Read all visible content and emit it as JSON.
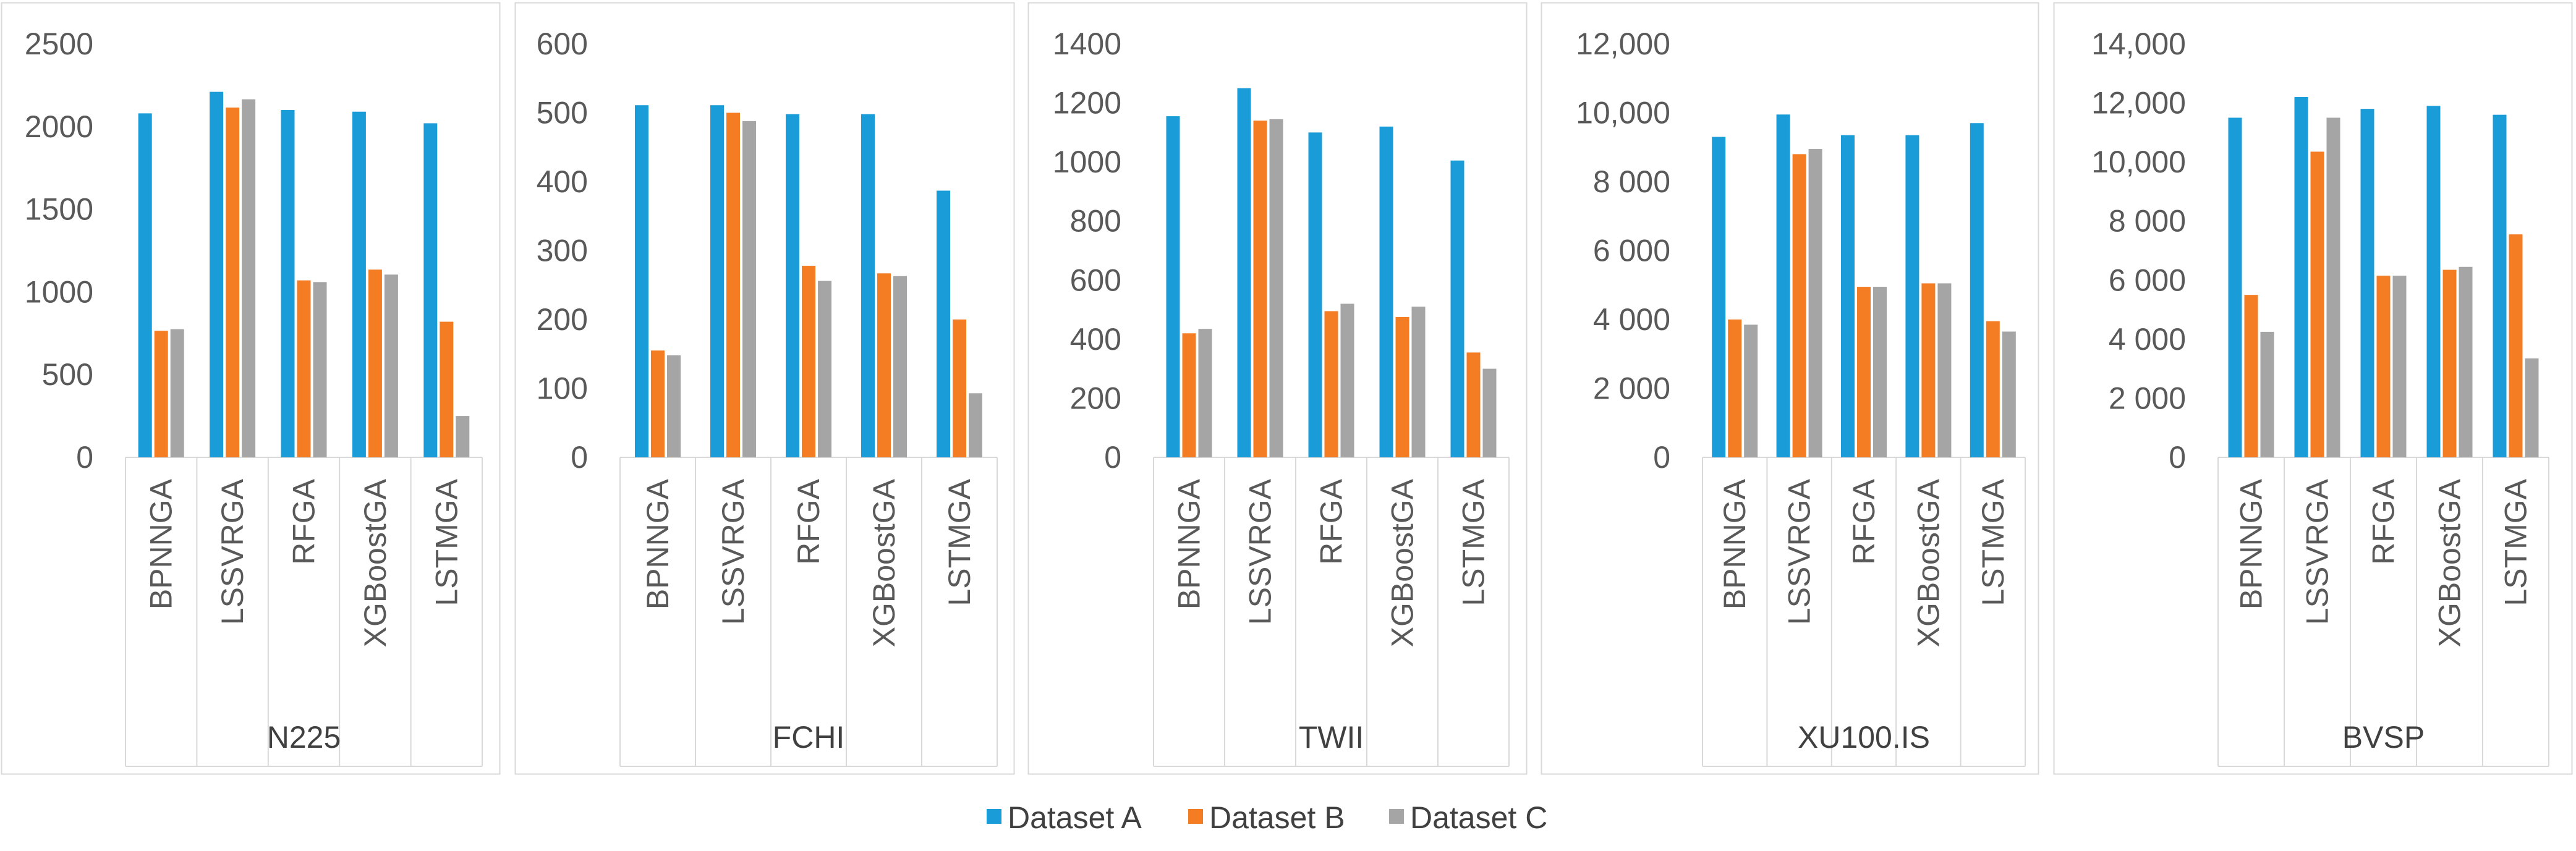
{
  "chart_data": [
    {
      "type": "bar",
      "title": "N225",
      "categories": [
        "BPNNGA",
        "LSSVRGA",
        "RFGA",
        "XGBoostGA",
        "LSTMGA"
      ],
      "series": [
        {
          "name": "Dataset A",
          "values": [
            2080,
            2210,
            2100,
            2090,
            2020
          ]
        },
        {
          "name": "Dataset B",
          "values": [
            765,
            2115,
            1070,
            1135,
            820
          ]
        },
        {
          "name": "Dataset C",
          "values": [
            775,
            2165,
            1060,
            1105,
            250
          ]
        }
      ],
      "ylim": [
        0,
        2500
      ],
      "yticks": [
        "0",
        "500",
        "1000",
        "1500",
        "2000",
        "2500"
      ]
    },
    {
      "type": "bar",
      "title": "FCHI",
      "categories": [
        "BPNNGA",
        "LSSVRGA",
        "RFGA",
        "XGBoostGA",
        "LSTMGA"
      ],
      "series": [
        {
          "name": "Dataset A",
          "values": [
            511,
            511,
            498,
            498,
            387
          ]
        },
        {
          "name": "Dataset B",
          "values": [
            155,
            500,
            278,
            267,
            200
          ]
        },
        {
          "name": "Dataset C",
          "values": [
            148,
            488,
            256,
            263,
            93
          ]
        }
      ],
      "ylim": [
        0,
        600
      ],
      "yticks": [
        "0",
        "100",
        "200",
        "300",
        "400",
        "500",
        "600"
      ]
    },
    {
      "type": "bar",
      "title": "TWII",
      "categories": [
        "BPNNGA",
        "LSSVRGA",
        "RFGA",
        "XGBoostGA",
        "LSTMGA"
      ],
      "series": [
        {
          "name": "Dataset A",
          "values": [
            1155,
            1250,
            1100,
            1120,
            1005
          ]
        },
        {
          "name": "Dataset B",
          "values": [
            420,
            1140,
            495,
            475,
            355
          ]
        },
        {
          "name": "Dataset C",
          "values": [
            435,
            1145,
            520,
            510,
            300
          ]
        }
      ],
      "ylim": [
        0,
        1400
      ],
      "yticks": [
        "0",
        "200",
        "400",
        "600",
        "800",
        "1000",
        "1200",
        "1400"
      ]
    },
    {
      "type": "bar",
      "title": "XU100.IS",
      "categories": [
        "BPNNGA",
        "LSSVRGA",
        "RFGA",
        "XGBoostGA",
        "LSTMGA"
      ],
      "series": [
        {
          "name": "Dataset A",
          "values": [
            9300,
            9950,
            9350,
            9350,
            9700
          ]
        },
        {
          "name": "Dataset B",
          "values": [
            4000,
            8800,
            4950,
            5050,
            3950
          ]
        },
        {
          "name": "Dataset C",
          "values": [
            3850,
            8950,
            4950,
            5050,
            3650
          ]
        }
      ],
      "ylim": [
        0,
        12000
      ],
      "yticks": [
        "0",
        "2 000",
        "4 000",
        "6 000",
        "8 000",
        "10,000",
        "12,000"
      ]
    },
    {
      "type": "bar",
      "title": "BVSP",
      "categories": [
        "BPNNGA",
        "LSSVRGA",
        "RFGA",
        "XGBoostGA",
        "LSTMGA"
      ],
      "series": [
        {
          "name": "Dataset A",
          "values": [
            11500,
            12200,
            11800,
            11900,
            11600
          ]
        },
        {
          "name": "Dataset B",
          "values": [
            5500,
            10350,
            6150,
            6350,
            7550
          ]
        },
        {
          "name": "Dataset C",
          "values": [
            4250,
            11500,
            6150,
            6450,
            3350
          ]
        }
      ],
      "ylim": [
        0,
        14000
      ],
      "yticks": [
        "0",
        "2 000",
        "4 000",
        "6 000",
        "8 000",
        "10,000",
        "12,000",
        "14,000"
      ]
    }
  ],
  "legend": {
    "position": "bottom",
    "items": [
      {
        "name": "Dataset A",
        "color": "#1a9cd8"
      },
      {
        "name": "Dataset B",
        "color": "#f47d24"
      },
      {
        "name": "Dataset C",
        "color": "#a5a5a5"
      }
    ]
  },
  "colors": {
    "panel_border": "#d9d9d9",
    "axis_line": "#d9d9d9"
  }
}
